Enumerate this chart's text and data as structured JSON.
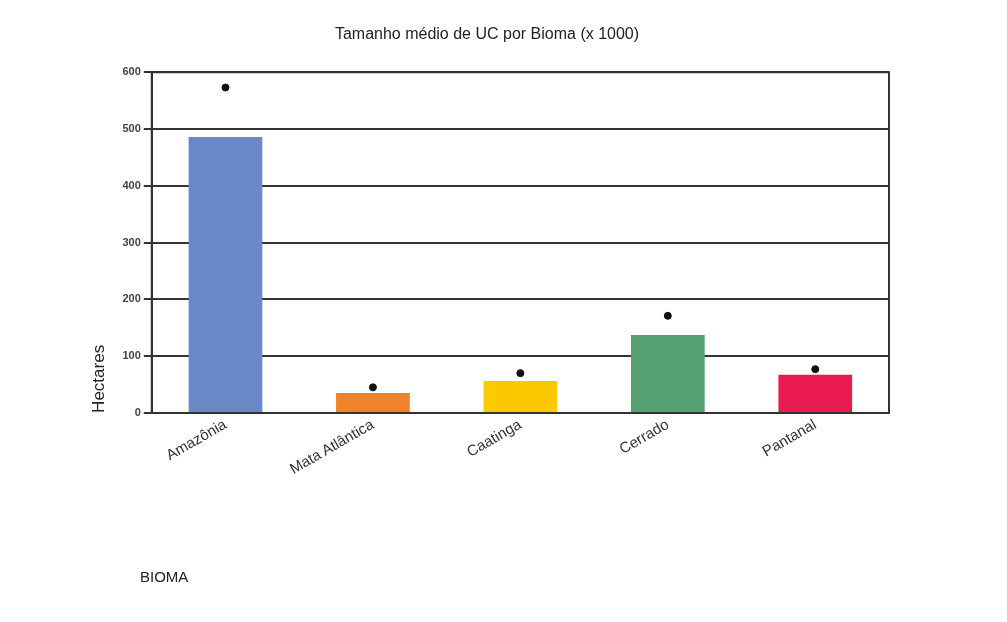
{
  "chart_data": {
    "type": "bar",
    "title": "Tamanho médio de UC por Bioma (x 1000)",
    "annotations": [
      "BIOMA"
    ],
    "ylabel": "Hectares",
    "categories": [
      "Amazônia",
      "Mata Atlântica",
      "Caatinga",
      "Cerrado",
      "Pantanal"
    ],
    "series": [
      {
        "colors": [
          "#6b88c6",
          "#f0822a",
          "#fcc800",
          "#55a071",
          "#e81a4f"
        ],
        "values": [
          486,
          35,
          56,
          137,
          67
        ]
      },
      {
        "type": "scatter",
        "color": "#111111",
        "x": [
          "Amazônia",
          "Mata Atlântica",
          "Caatinga",
          "Cerrado",
          "Pantanal"
        ],
        "values": [
          573,
          45,
          70,
          171,
          77
        ]
      }
    ],
    "ylim": [
      0,
      600
    ],
    "yticks": [
      0,
      100,
      200,
      300,
      400,
      500,
      600
    ],
    "grid": "y",
    "marker": "circle"
  }
}
